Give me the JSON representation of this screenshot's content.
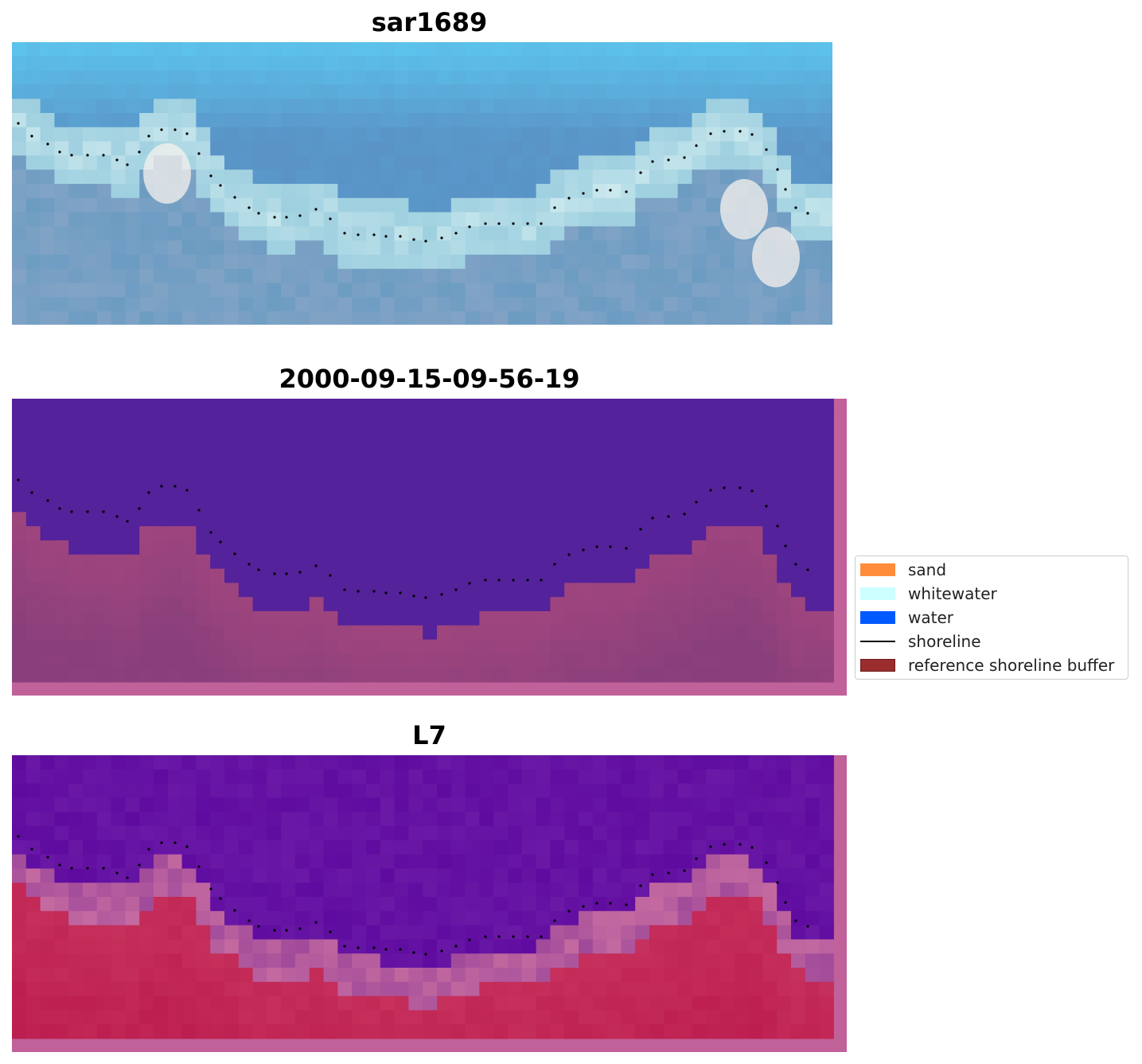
{
  "panels": [
    {
      "title": "sar1689"
    },
    {
      "title": "2000-09-15-09-56-19"
    },
    {
      "title": "L7"
    }
  ],
  "legend": {
    "items": [
      {
        "label": "sand",
        "color": "#ff8c3a",
        "kind": "patch"
      },
      {
        "label": "whitewater",
        "color": "#ccffff",
        "kind": "patch"
      },
      {
        "label": "water",
        "color": "#0059ff",
        "kind": "patch"
      },
      {
        "label": "shoreline",
        "color": "#000000",
        "kind": "line"
      },
      {
        "label": "reference shoreline buffer",
        "color": "#9b2d2d",
        "kind": "patch"
      }
    ]
  },
  "colors": {
    "rgb_ocean": "#5a93c6",
    "rgb_ocean_light": "#5cc6ef",
    "rgb_sand": "#6c9cc2",
    "water_class": "#54229a",
    "land_class": "#a0457e",
    "buffer": "#c0619a",
    "mndwi_water": "#5f0ba0",
    "mndwi_land": "#c8335e"
  }
}
